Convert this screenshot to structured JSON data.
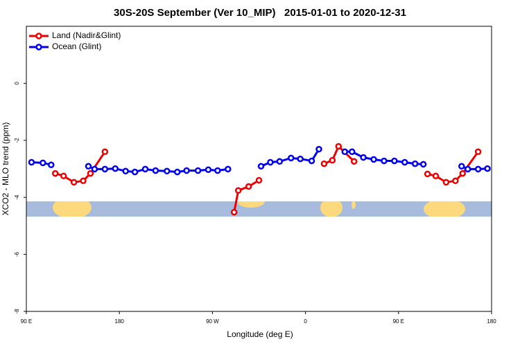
{
  "chart_data": {
    "type": "line",
    "title": "30S-20S September (Ver 10_MIP)   2015-01-01 to 2020-12-31",
    "x_label": "Longitude (deg E)",
    "y_label": "XCO2 - MLO trend (ppm)",
    "xlim": [
      90,
      540
    ],
    "xticks": [
      {
        "value": 90,
        "label": "90 E"
      },
      180,
      {
        "value": 270,
        "label": "90 W"
      },
      {
        "value": 360,
        "label": "0"
      },
      {
        "value": 450,
        "label": "90 E"
      },
      {
        "value": 540,
        "label": "180"
      }
    ],
    "ylim": [
      -8,
      2
    ],
    "yticks": [
      0,
      -2,
      -4,
      -6,
      -8
    ],
    "legend": "top-left",
    "series": [
      {
        "name": "Land (Nadir&Glint)",
        "color": "#ee0000",
        "x": [
          118,
          126,
          136,
          145,
          152,
          166,
          null,
          291,
          295,
          305,
          315,
          null,
          378,
          386,
          392,
          407,
          null,
          478,
          486,
          496,
          505,
          512,
          527
        ],
        "values": [
          -3.16,
          -3.25,
          -3.47,
          -3.42,
          -3.16,
          -2.4,
          null,
          -4.52,
          -3.76,
          -3.62,
          -3.4,
          null,
          -2.82,
          -2.7,
          -2.21,
          -2.74,
          null,
          -3.18,
          -3.25,
          -3.47,
          -3.42,
          -3.16,
          -2.4
        ]
      },
      {
        "name": "Ocean (Glint)",
        "color": "#0000ee",
        "x": [
          95,
          106,
          114,
          null,
          150,
          156,
          166,
          176,
          186,
          195,
          205,
          215,
          226,
          236,
          245,
          256,
          266,
          275,
          285,
          null,
          317,
          326,
          335,
          346,
          355,
          366,
          373,
          null,
          398,
          405,
          416,
          426,
          436,
          446,
          456,
          466,
          474,
          null,
          511,
          517,
          527,
          536
        ],
        "values": [
          -2.77,
          -2.79,
          -2.86,
          null,
          -2.91,
          -3.01,
          -3.01,
          -2.99,
          -3.08,
          -3.11,
          -3.01,
          -3.06,
          -3.08,
          -3.11,
          -3.06,
          -3.06,
          -3.03,
          -3.06,
          -3.01,
          null,
          -2.91,
          -2.77,
          -2.74,
          -2.62,
          -2.65,
          -2.72,
          -2.31,
          null,
          -2.4,
          -2.4,
          -2.6,
          -2.67,
          -2.72,
          -2.72,
          -2.77,
          -2.82,
          -2.84,
          null,
          -2.91,
          -3.01,
          -3.01,
          -2.99
        ]
      }
    ]
  }
}
